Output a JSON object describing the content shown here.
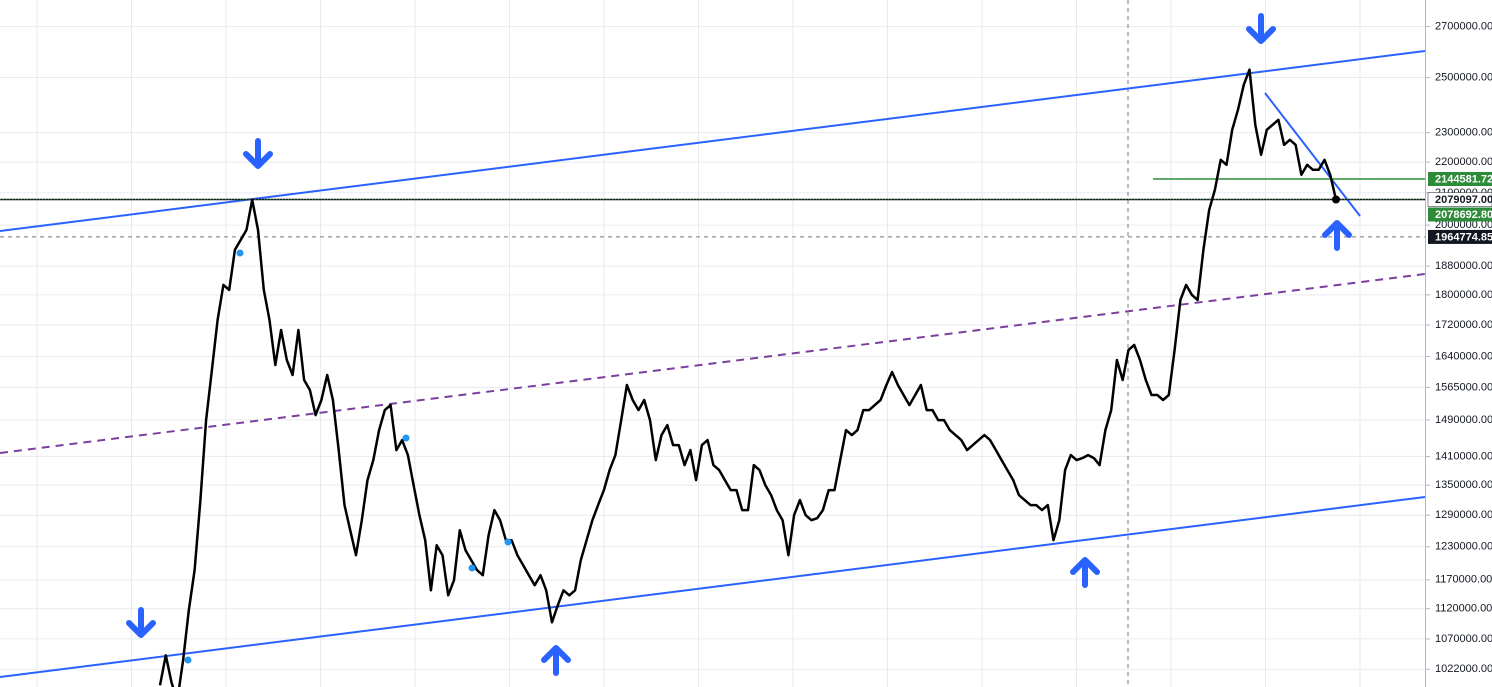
{
  "chart_data": {
    "type": "line",
    "log_scale": true,
    "grid": true,
    "color": "#000000",
    "ylim": [
      995000,
      2811000
    ],
    "yticks": [
      {
        "value": 2700000,
        "label": "2700000.00"
      },
      {
        "value": 2500000,
        "label": "2500000.00"
      },
      {
        "value": 2300000,
        "label": "2300000.00"
      },
      {
        "value": 2200000,
        "label": "2200000.00"
      },
      {
        "value": 2100000,
        "label": "2100000.00"
      },
      {
        "value": 2000000,
        "label": "2000000.00"
      },
      {
        "value": 1880000,
        "label": "1880000.00"
      },
      {
        "value": 1800000,
        "label": "1800000.00"
      },
      {
        "value": 1720000,
        "label": "1720000.00"
      },
      {
        "value": 1640000,
        "label": "1640000.00"
      },
      {
        "value": 1565000,
        "label": "1565000.00"
      },
      {
        "value": 1490000,
        "label": "1490000.00"
      },
      {
        "value": 1410000,
        "label": "1410000.00"
      },
      {
        "value": 1350000,
        "label": "1350000.00"
      },
      {
        "value": 1290000,
        "label": "1290000.00"
      },
      {
        "value": 1230000,
        "label": "1230000.00"
      },
      {
        "value": 1170000,
        "label": "1170000.00"
      },
      {
        "value": 1120000,
        "label": "1120000.00"
      },
      {
        "value": 1070000,
        "label": "1070000.00"
      },
      {
        "value": 1022000,
        "label": "1022000.00"
      }
    ],
    "price_tags": [
      {
        "value": 2144581.72,
        "label": "2144581.72",
        "color": "#2e8b3a"
      },
      {
        "value": 2079097,
        "label": "2079097.00",
        "color": "#ffffff"
      },
      {
        "value": 2078692.8,
        "label": "2078692.80",
        "color": "#2e8b3a"
      },
      {
        "value": 1964774.85,
        "label": "1964774.85",
        "color": "#131722"
      }
    ],
    "values": [
      997500,
      1043900,
      1002000,
      975100,
      1036000,
      1117400,
      1187100,
      1319800,
      1489600,
      1606700,
      1733000,
      1827300,
      1813500,
      1926600,
      1956000,
      1985800,
      2078100,
      1985800,
      1813500,
      1733000,
      1619000,
      1707000,
      1631200,
      1594600,
      1707000,
      1582600,
      1558800,
      1500900,
      1535400,
      1594600,
      1535400,
      1423500,
      1309900,
      1261200,
      1214400,
      1280400,
      1360300,
      1402100,
      1467200,
      1512300,
      1523800,
      1423500,
      1445200,
      1412800,
      1350100,
      1290200,
      1242300,
      1151700,
      1232900,
      1214400,
      1143000,
      1169300,
      1261200,
      1223600,
      1205200,
      1187100,
      1178200,
      1251700,
      1300000,
      1280400,
      1242300,
      1242300,
      1214400,
      1196100,
      1178200,
      1160500,
      1178200,
      1151700,
      1097300,
      1125900,
      1151700,
      1143000,
      1151700,
      1205200,
      1242300,
      1280400,
      1309900,
      1339900,
      1381000,
      1412800,
      1489600,
      1570700,
      1535400,
      1512300,
      1535400,
      1489600,
      1402100,
      1456200,
      1478400,
      1434300,
      1434300,
      1391500,
      1423500,
      1360300,
      1434300,
      1445200,
      1391500,
      1381000,
      1360300,
      1339900,
      1339900,
      1300000,
      1300000,
      1391500,
      1381000,
      1350100,
      1329800,
      1300000,
      1280400,
      1214400,
      1290200,
      1319800,
      1290200,
      1280400,
      1284300,
      1300000,
      1339900,
      1339900,
      1402100,
      1467200,
      1456200,
      1467200,
      1512300,
      1512300,
      1523800,
      1535400,
      1570700,
      1601900,
      1570700,
      1547100,
      1523800,
      1547100,
      1570700,
      1512300,
      1512300,
      1489600,
      1489600,
      1467200,
      1456200,
      1445200,
      1423500,
      1434300,
      1445200,
      1456200,
      1445200,
      1423500,
      1402100,
      1381000,
      1360300,
      1329800,
      1319800,
      1309900,
      1309900,
      1300000,
      1309900,
      1242300,
      1280400,
      1381000,
      1412800,
      1402100,
      1406300,
      1412800,
      1406300,
      1391500,
      1467200,
      1512300,
      1631200,
      1582600,
      1656100,
      1668700,
      1631200,
      1582600,
      1547100,
      1547100,
      1535400,
      1547100,
      1656100,
      1786200,
      1827300,
      1799800,
      1786200,
      1926600,
      2046900,
      2109800,
      2207700,
      2191100,
      2310300,
      2381300,
      2473200,
      2529900,
      2327800,
      2224500,
      2310300,
      2327800,
      2345500,
      2258400,
      2275600,
      2258400,
      2158200,
      2191100,
      2174600,
      2174600,
      2207700,
      2158200,
      2079097
    ]
  }
}
